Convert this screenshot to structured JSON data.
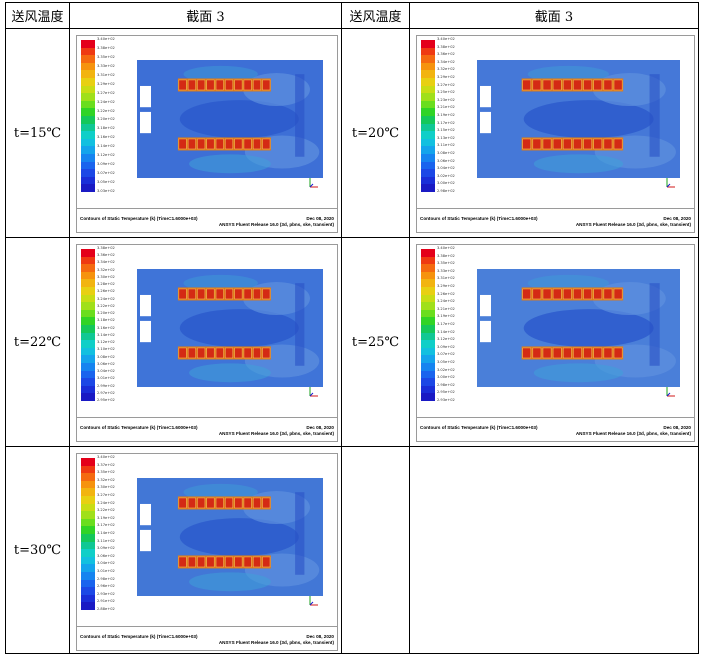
{
  "header": {
    "col1": "送风温度",
    "col2": "截面 3",
    "col3": "送风温度",
    "col4": "截面 3"
  },
  "rows": [
    {
      "left": {
        "label": "t=15℃",
        "ticks": [
          "3.40e+02",
          "3.38e+02",
          "3.35e+02",
          "3.33e+02",
          "3.31e+02",
          "3.29e+02",
          "3.27e+02",
          "3.24e+02",
          "3.22e+02",
          "3.20e+02",
          "3.18e+02",
          "3.16e+02",
          "3.14e+02",
          "3.12e+02",
          "3.09e+02",
          "3.07e+02",
          "3.05e+02",
          "3.03e+02"
        ],
        "caption_left": "Contours of Static Temperature (k)  (Time=1.6000e+03)",
        "caption_date": "Dec 08, 2020",
        "caption_release": "ANSYS Fluent Release 16.0 (3d, pbns, ske, transient)",
        "bg_color": "#3d6fd6"
      },
      "right": {
        "label": "t=20℃",
        "ticks": [
          "3.40e+02",
          "3.38e+02",
          "3.36e+02",
          "3.34e+02",
          "3.32e+02",
          "3.29e+02",
          "3.27e+02",
          "3.25e+02",
          "3.23e+02",
          "3.21e+02",
          "3.19e+02",
          "3.17e+02",
          "3.15e+02",
          "3.13e+02",
          "3.11e+02",
          "3.08e+02",
          "3.06e+02",
          "3.04e+02",
          "3.02e+02",
          "3.00e+02",
          "2.98e+02"
        ],
        "caption_left": "Contours of Static Temperature (k)  (Time=1.6000e+03)",
        "caption_date": "Dec 08, 2020",
        "caption_release": "ANSYS Fluent Release 16.0 (3d, pbns, ske, transient)",
        "bg_color": "#4578d8"
      }
    },
    {
      "left": {
        "label": "t=22℃",
        "ticks": [
          "3.38e+02",
          "3.36e+02",
          "3.34e+02",
          "3.32e+02",
          "3.30e+02",
          "3.28e+02",
          "3.26e+02",
          "3.24e+02",
          "3.22e+02",
          "3.20e+02",
          "3.18e+02",
          "3.16e+02",
          "3.14e+02",
          "3.12e+02",
          "3.10e+02",
          "3.08e+02",
          "3.06e+02",
          "3.04e+02",
          "3.01e+02",
          "2.99e+02",
          "2.97e+02",
          "2.95e+02"
        ],
        "caption_left": "Contours of Static Temperature (k)  (Time=1.6000e+03)",
        "caption_date": "Dec 08, 2020",
        "caption_release": "ANSYS Fluent Release 16.0 (3d, pbns, ske, transient)",
        "bg_color": "#3f74d8"
      },
      "right": {
        "label": "t=25℃",
        "ticks": [
          "3.40e+02",
          "3.38e+02",
          "3.35e+02",
          "3.33e+02",
          "3.31e+02",
          "3.29e+02",
          "3.26e+02",
          "3.24e+02",
          "3.21e+02",
          "3.19e+02",
          "3.17e+02",
          "3.14e+02",
          "3.12e+02",
          "3.09e+02",
          "3.07e+02",
          "3.05e+02",
          "3.02e+02",
          "3.00e+02",
          "2.98e+02",
          "2.95e+02",
          "2.93e+02"
        ],
        "caption_left": "Contours of Static Temperature (k)  (Time=1.6000e+03)",
        "caption_date": "Dec 08, 2020",
        "caption_release": "ANSYS Fluent Release 16.0 (3d, pbns, ske, transient)",
        "bg_color": "#4a7fd9"
      }
    },
    {
      "left": {
        "label": "t=30℃",
        "ticks": [
          "3.40e+02",
          "3.37e+02",
          "3.35e+02",
          "3.32e+02",
          "3.30e+02",
          "3.27e+02",
          "3.24e+02",
          "3.22e+02",
          "3.19e+02",
          "3.17e+02",
          "3.14e+02",
          "3.11e+02",
          "3.09e+02",
          "3.06e+02",
          "3.04e+02",
          "3.01e+02",
          "2.98e+02",
          "2.96e+02",
          "2.93e+02",
          "2.91e+02",
          "2.88e+02"
        ],
        "caption_left": "Contours of Static Temperature (k)  (Time=1.6000e+03)",
        "caption_date": "Dec 08, 2020",
        "caption_release": "ANSYS Fluent Release 16.0 (3d, pbns, ske, transient)",
        "bg_color": "#4277d6"
      },
      "right": null
    }
  ],
  "colormap": [
    "#e4001a",
    "#ef3a12",
    "#f56a10",
    "#f6930e",
    "#f2b410",
    "#e8d012",
    "#c9dd14",
    "#a0e01a",
    "#6ade1e",
    "#30d426",
    "#14c85a",
    "#10c894",
    "#10cfc8",
    "#12c0e0",
    "#14a4ec",
    "#1684f0",
    "#1a64ee",
    "#1c48e6",
    "#1a2ed8",
    "#1a1ac4"
  ],
  "axis_labels": {
    "x": "x",
    "y": "y",
    "z": "z"
  }
}
